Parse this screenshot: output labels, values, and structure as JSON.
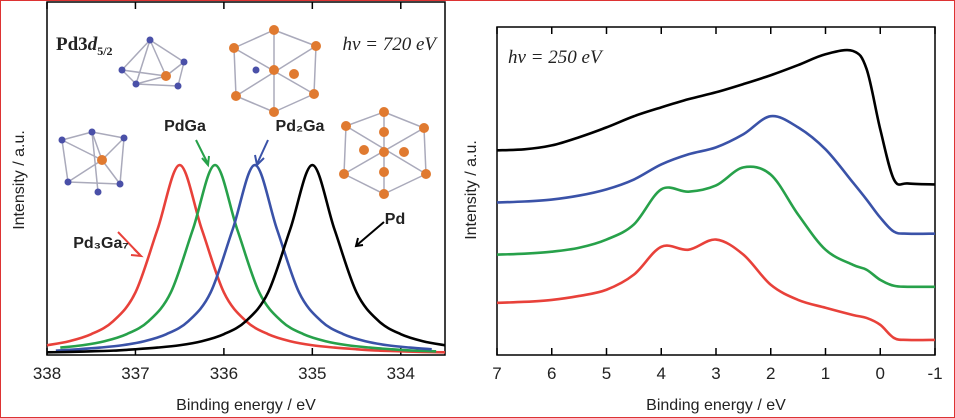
{
  "chart_data": [
    {
      "type": "line",
      "title_parts": [
        "Pd3",
        "d",
        "5/2"
      ],
      "annotation": "hν = 720 eV",
      "x_label": "Binding energy / eV",
      "y_label": "Intensity / a.u.",
      "xlim": [
        338,
        333.5
      ],
      "xticks": [
        338,
        337,
        336,
        335,
        334
      ],
      "ylim": [
        0,
        105
      ],
      "series": [
        {
          "name": "Pd₃Ga₇",
          "color": "#e8413a",
          "x": [
            338,
            337.75,
            337.5,
            337.25,
            337,
            336.75,
            336.5,
            336.25,
            336,
            335.75,
            335.5,
            335.25,
            335,
            334.75,
            334.5,
            334.25,
            334,
            333.75,
            333.5
          ],
          "values": [
            2.9,
            4.1,
            6.2,
            10.1,
            18.6,
            37.4,
            56.5,
            37.4,
            18.6,
            10.1,
            6.2,
            4.1,
            2.9,
            2.2,
            1.7,
            1.3,
            1.1,
            0.9,
            0.8
          ]
        },
        {
          "name": "PdGa",
          "color": "#27a14a",
          "x": [
            337.85,
            337.6,
            337.35,
            337.1,
            336.85,
            336.6,
            336.35,
            336.1,
            335.85,
            335.6,
            335.35,
            335.1,
            334.85,
            334.6,
            334.35,
            334.1,
            333.85,
            333.6
          ],
          "values": [
            2.2,
            2.9,
            4.1,
            6.2,
            10.1,
            18.6,
            37.4,
            56.5,
            37.4,
            18.6,
            10.1,
            6.2,
            4.1,
            2.9,
            2.2,
            1.7,
            1.3,
            1.1
          ]
        },
        {
          "name": "Pd₂Ga",
          "color": "#3a52a8",
          "x": [
            337.9,
            337.65,
            337.4,
            337.15,
            336.9,
            336.65,
            336.4,
            336.15,
            335.9,
            335.65,
            335.4,
            335.15,
            334.9,
            334.65,
            334.4,
            334.15,
            333.9,
            333.65
          ],
          "values": [
            1.3,
            1.7,
            2.2,
            2.9,
            4.1,
            6.2,
            10.1,
            18.6,
            37.4,
            56.5,
            37.4,
            18.6,
            10.1,
            6.2,
            4.1,
            2.9,
            2.2,
            1.7
          ]
        },
        {
          "name": "Pd",
          "color": "#000000",
          "x": [
            338,
            337.75,
            337.5,
            337.25,
            337,
            336.75,
            336.5,
            336.25,
            336,
            335.75,
            335.5,
            335.25,
            335,
            334.75,
            334.5,
            334.25,
            334,
            333.75,
            333.5
          ],
          "values": [
            0.8,
            0.9,
            1.1,
            1.3,
            1.7,
            2.2,
            2.9,
            4.1,
            6.2,
            10.1,
            18.6,
            37.4,
            56.5,
            37.4,
            18.6,
            10.1,
            6.2,
            4.1,
            2.9
          ]
        }
      ]
    },
    {
      "type": "line",
      "annotation": "hν = 250 eV",
      "x_label": "Binding energy / eV",
      "y_label": "Intensity / a.u.",
      "xlim": [
        7,
        -1
      ],
      "xticks": [
        7,
        6,
        5,
        4,
        3,
        2,
        1,
        0,
        -1
      ],
      "ylim": [
        0,
        100
      ],
      "x": [
        7,
        6.5,
        6,
        5.5,
        5,
        4.5,
        4,
        3.5,
        3,
        2.5,
        2,
        1.5,
        1,
        0.5,
        0.25,
        0,
        -0.25,
        -0.5,
        -1
      ],
      "series": [
        {
          "color": "#000000",
          "values": [
            62.4,
            62.7,
            63.9,
            66.4,
            69.4,
            72.8,
            75.5,
            78.0,
            80.1,
            82.6,
            85.3,
            88.4,
            91.7,
            92.7,
            87.2,
            68.8,
            53.5,
            52.3,
            52.0
          ]
        },
        {
          "color": "#3a52a8",
          "values": [
            46.5,
            46.8,
            47.4,
            48.6,
            50.5,
            53.5,
            58.1,
            61.2,
            63.3,
            67.3,
            72.8,
            69.4,
            62.7,
            52.6,
            47.4,
            41.9,
            37.6,
            37.0,
            37.0
          ]
        },
        {
          "color": "#27a14a",
          "values": [
            30.6,
            30.9,
            31.5,
            32.7,
            35.2,
            39.8,
            50.5,
            49.8,
            51.7,
            57.2,
            55.0,
            42.8,
            32.1,
            27.5,
            26.0,
            22.9,
            21.1,
            20.8,
            20.8
          ]
        },
        {
          "color": "#e8413a",
          "values": [
            15.9,
            16.2,
            16.8,
            18.0,
            19.9,
            24.5,
            33.0,
            32.1,
            35.2,
            30.6,
            21.4,
            16.8,
            14.4,
            12.2,
            11.3,
            9.2,
            5.2,
            4.6,
            4.6
          ]
        }
      ]
    }
  ]
}
